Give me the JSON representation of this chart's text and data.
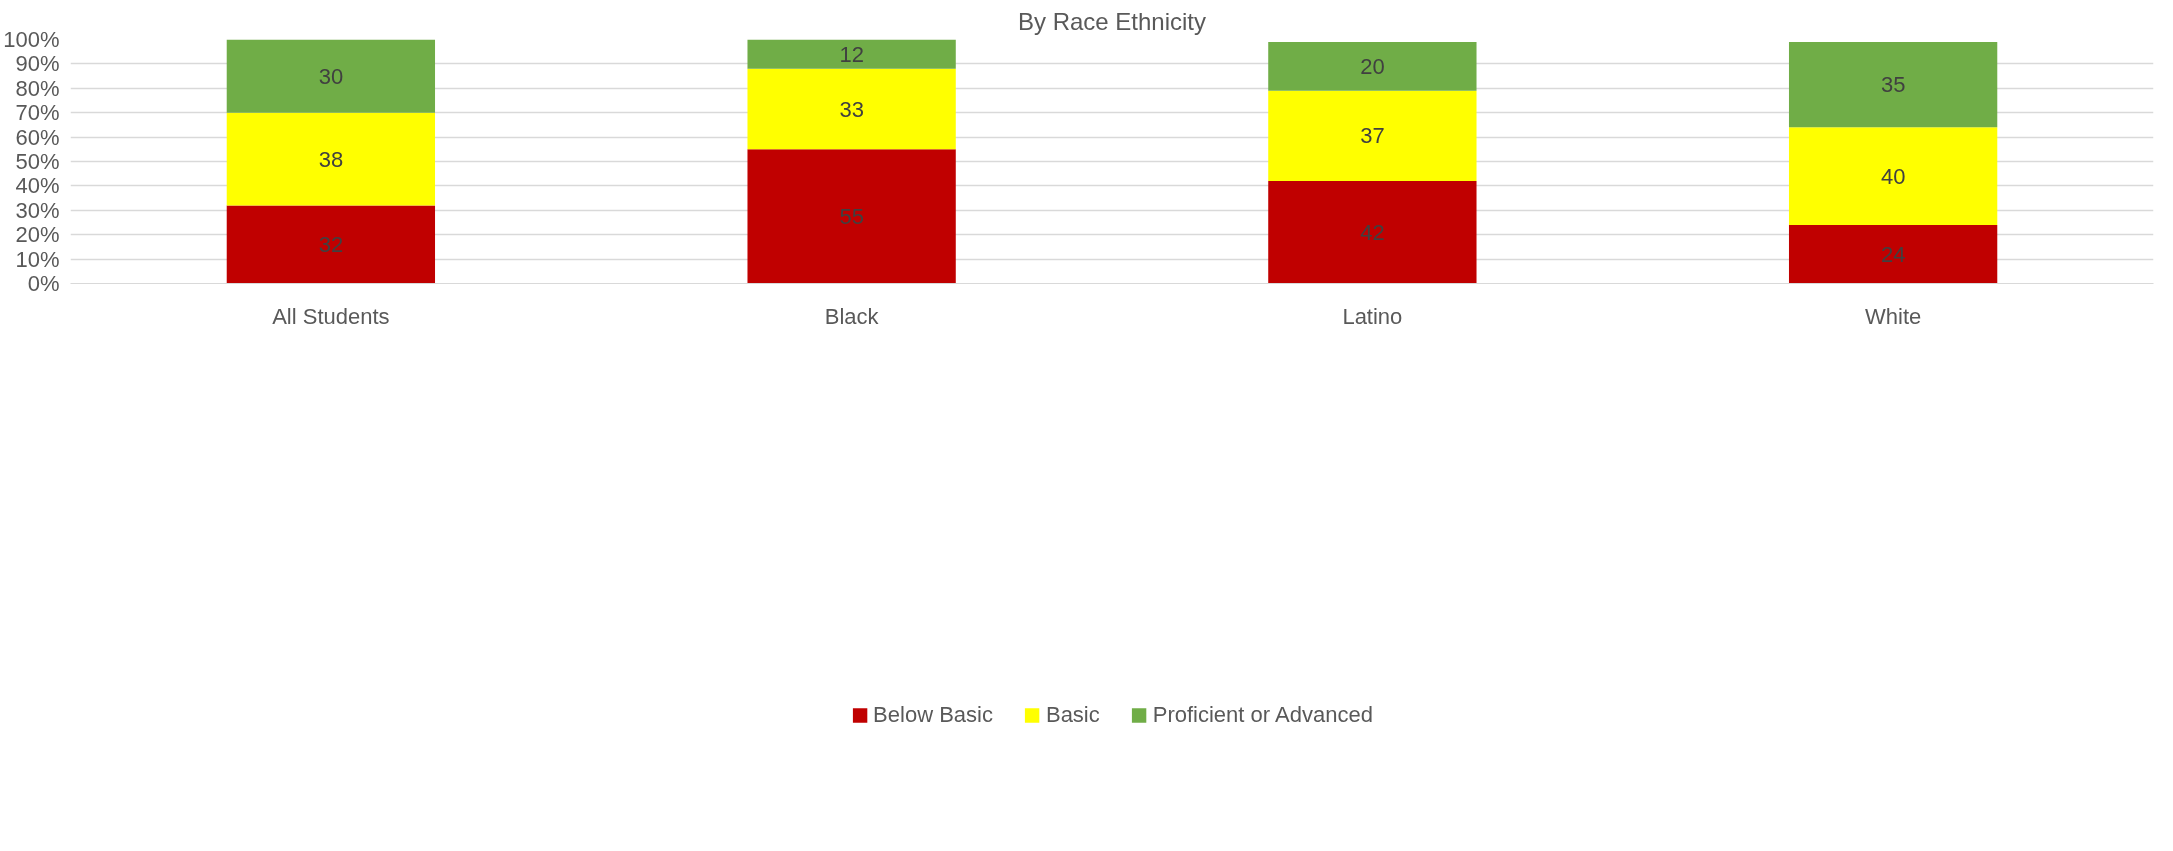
{
  "chart_data": {
    "type": "bar",
    "title": "By Race Ethnicity",
    "stacked": true,
    "categories": [
      "All Students",
      "Black",
      "Latino",
      "White"
    ],
    "series": [
      {
        "name": "Below Basic",
        "color": "#c00000",
        "values": [
          32,
          55,
          42,
          24
        ]
      },
      {
        "name": "Basic",
        "color": "#ffff00",
        "values": [
          38,
          33,
          37,
          40
        ]
      },
      {
        "name": "Proficient or Advanced",
        "color": "#70ad47",
        "values": [
          30,
          12,
          20,
          35
        ]
      }
    ],
    "ylim": [
      0,
      100
    ],
    "yticks": [
      {
        "value": 0,
        "label": "0%"
      },
      {
        "value": 10,
        "label": "10%"
      },
      {
        "value": 20,
        "label": "20%"
      },
      {
        "value": 30,
        "label": "30%"
      },
      {
        "value": 40,
        "label": "40%"
      },
      {
        "value": 50,
        "label": "50%"
      },
      {
        "value": 60,
        "label": "60%"
      },
      {
        "value": 70,
        "label": "70%"
      },
      {
        "value": 80,
        "label": "80%"
      },
      {
        "value": 90,
        "label": "90%"
      },
      {
        "value": 100,
        "label": "100%"
      }
    ],
    "grid": "y",
    "legend": "bottom",
    "data_labels": true
  }
}
